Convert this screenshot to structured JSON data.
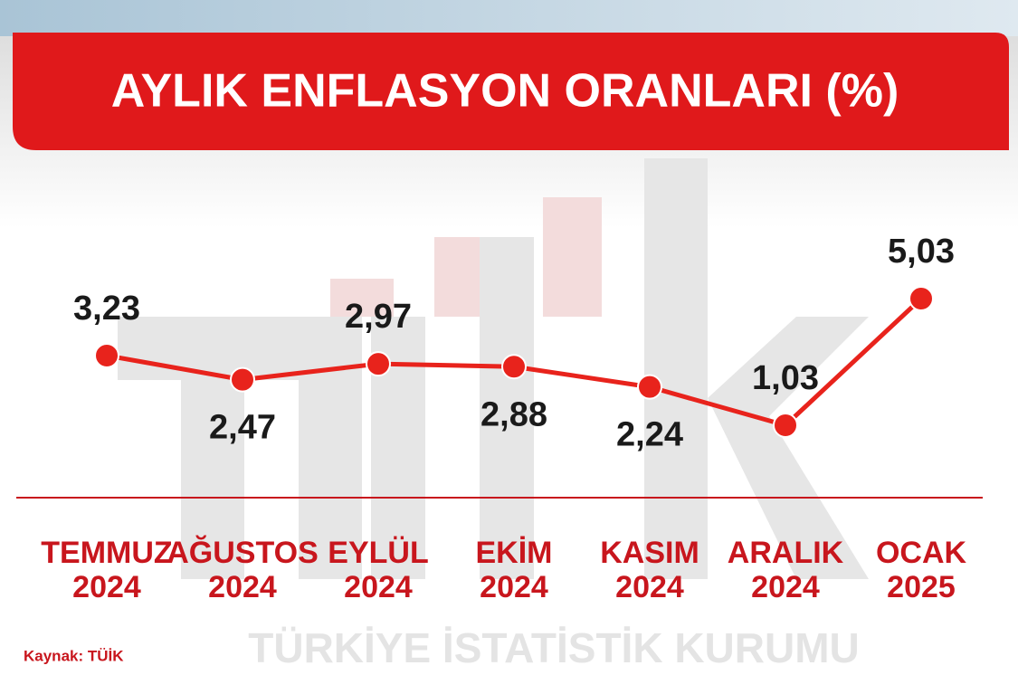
{
  "chart_data": {
    "type": "line",
    "title": "AYLIK ENFLASYON ORANLARI (%)",
    "categories": [
      "TEMMUZ\n2024",
      "AĞUSTOS\n2024",
      "EYLÜL\n2024",
      "EKİM\n2024",
      "KASIM\n2024",
      "ARALIK\n2024",
      "OCAK\n2025"
    ],
    "values": [
      3.23,
      2.47,
      2.97,
      2.88,
      2.24,
      1.03,
      5.03
    ],
    "value_labels": [
      "3,23",
      "2,47",
      "2,97",
      "2,88",
      "2,24",
      "1,03",
      "5,03"
    ],
    "color": "#e8231c",
    "source": "Kaynak: TÜİK",
    "watermark": "TÜRKİYE İSTATİSTİK KURUMU"
  }
}
